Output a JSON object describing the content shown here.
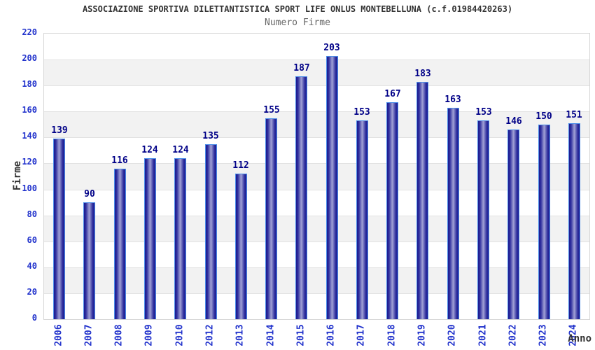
{
  "header": {
    "title": "ASSOCIAZIONE SPORTIVA DILETTANTISTICA SPORT LIFE ONLUS MONTEBELLUNA (c.f.01984420263)",
    "subtitle": "Numero Firme"
  },
  "chart_data": {
    "type": "bar",
    "title": "Numero Firme",
    "categories": [
      "2006",
      "2007",
      "2008",
      "2009",
      "2010",
      "2012",
      "2013",
      "2014",
      "2015",
      "2016",
      "2017",
      "2018",
      "2019",
      "2020",
      "2021",
      "2022",
      "2023",
      "2024"
    ],
    "values": [
      139,
      90,
      116,
      124,
      124,
      135,
      112,
      155,
      187,
      203,
      153,
      167,
      183,
      163,
      153,
      146,
      150,
      151
    ],
    "xlabel": "Anno",
    "ylabel": "Firme",
    "ylim": [
      0,
      220
    ],
    "ytick_step": 20,
    "grid": true,
    "legend": "none",
    "colors": {
      "bar_dark": "#191991",
      "bar_mid": "#30309e",
      "bar_light": "#a2a2d6",
      "bar_border": "#4d8ee8",
      "value_label": "#000087",
      "tick_label": "#2233cc",
      "axis_title": "#333333",
      "title": "#333333",
      "subtitle": "#666666",
      "band": "#f2f2f2",
      "grid_line": "#e2e2e2",
      "plot_border": "#d6d6d6"
    }
  }
}
